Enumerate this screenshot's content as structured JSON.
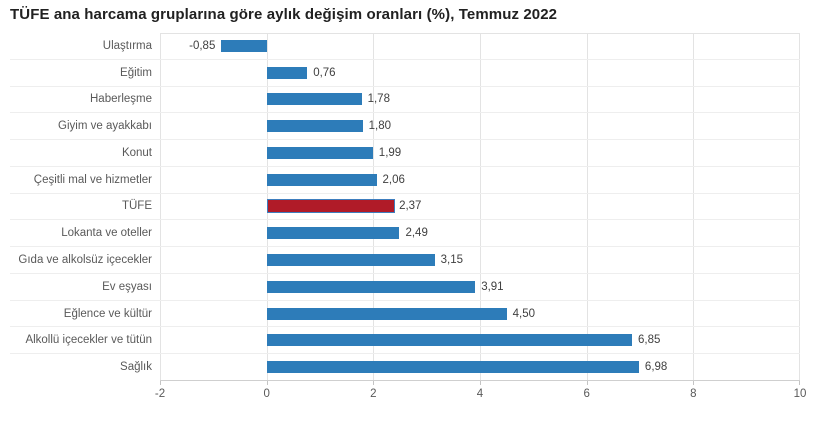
{
  "title": "TÜFE ana harcama gruplarına göre aylık değişim oranları (%), Temmuz 2022",
  "chart_data": {
    "type": "bar",
    "orientation": "horizontal",
    "title": "TÜFE ana harcama gruplarına göre aylık değişim oranları (%), Temmuz 2022",
    "categories": [
      "Ulaştırma",
      "Eğitim",
      "Haberleşme",
      "Giyim ve ayakkabı",
      "Konut",
      "Çeşitli mal ve hizmetler",
      "TÜFE",
      "Lokanta ve oteller",
      "Gıda ve alkolsüz içecekler",
      "Ev eşyası",
      "Eğlence ve kültür",
      "Alkollü içecekler ve tütün",
      "Sağlık"
    ],
    "values": [
      -0.85,
      0.76,
      1.78,
      1.8,
      1.99,
      2.06,
      2.37,
      2.49,
      3.15,
      3.91,
      4.5,
      6.85,
      6.98
    ],
    "value_labels": [
      "-0,85",
      "0,76",
      "1,78",
      "1,80",
      "1,99",
      "2,06",
      "2,37",
      "2,49",
      "3,15",
      "3,91",
      "4,50",
      "6,85",
      "6,98"
    ],
    "highlight_category": "TÜFE",
    "colors": {
      "bar": "#2d7cb9",
      "highlight": "#b01b28",
      "highlight_border": "#3e7ebe",
      "grid": "#e3e3e3",
      "axis_line": "#cfcfcf"
    },
    "xlabel": "",
    "ylabel": "",
    "xlim": [
      -2,
      10
    ],
    "x_ticks": [
      -2,
      0,
      2,
      4,
      6,
      8,
      10
    ],
    "x_tick_labels": [
      "-2",
      "0",
      "2",
      "4",
      "6",
      "8",
      "10"
    ],
    "grid": true,
    "legend": false
  }
}
